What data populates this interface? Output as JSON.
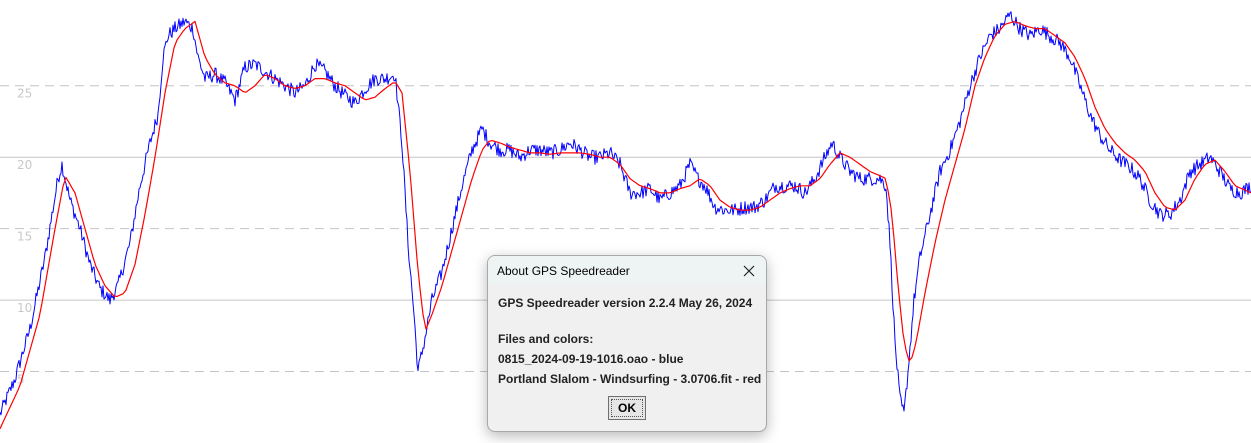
{
  "chart_data": {
    "type": "line",
    "yticks": [
      "25",
      "20",
      "15",
      "10",
      "5"
    ],
    "ylim": [
      0,
      31
    ],
    "grid": "horizontal",
    "series": [
      {
        "color": "#0000ff",
        "points": [
          [
            0,
            2
          ],
          [
            15,
            4.5
          ],
          [
            30,
            8
          ],
          [
            45,
            13
          ],
          [
            58,
            18.5
          ],
          [
            62,
            19.5
          ],
          [
            70,
            17
          ],
          [
            80,
            15
          ],
          [
            90,
            12.5
          ],
          [
            100,
            10.8
          ],
          [
            110,
            10
          ],
          [
            118,
            11
          ],
          [
            130,
            14
          ],
          [
            140,
            18
          ],
          [
            150,
            21
          ],
          [
            158,
            23
          ],
          [
            163,
            27
          ],
          [
            168,
            28.5
          ],
          [
            175,
            29
          ],
          [
            185,
            29.5
          ],
          [
            193,
            29
          ],
          [
            198,
            27
          ],
          [
            205,
            25.5
          ],
          [
            215,
            25.8
          ],
          [
            225,
            25.2
          ],
          [
            235,
            24
          ],
          [
            245,
            26.3
          ],
          [
            255,
            26.5
          ],
          [
            265,
            26
          ],
          [
            275,
            25.5
          ],
          [
            285,
            25
          ],
          [
            295,
            24.5
          ],
          [
            305,
            25
          ],
          [
            315,
            26.5
          ],
          [
            325,
            26
          ],
          [
            335,
            25
          ],
          [
            345,
            24.3
          ],
          [
            355,
            23.8
          ],
          [
            365,
            24.8
          ],
          [
            375,
            25.5
          ],
          [
            385,
            25.5
          ],
          [
            395,
            25.8
          ],
          [
            402,
            21
          ],
          [
            408,
            14
          ],
          [
            414,
            9
          ],
          [
            418,
            5
          ],
          [
            424,
            7
          ],
          [
            432,
            10
          ],
          [
            442,
            12
          ],
          [
            452,
            15
          ],
          [
            462,
            18
          ],
          [
            472,
            20.5
          ],
          [
            482,
            22
          ],
          [
            490,
            21
          ],
          [
            500,
            20.5
          ],
          [
            510,
            20.5
          ],
          [
            520,
            20
          ],
          [
            530,
            20.5
          ],
          [
            540,
            20.5
          ],
          [
            550,
            20.3
          ],
          [
            560,
            20.5
          ],
          [
            570,
            21
          ],
          [
            580,
            20.5
          ],
          [
            590,
            20
          ],
          [
            600,
            20
          ],
          [
            610,
            20.3
          ],
          [
            620,
            19.5
          ],
          [
            630,
            17.5
          ],
          [
            640,
            17.5
          ],
          [
            650,
            17.8
          ],
          [
            660,
            17
          ],
          [
            670,
            17.5
          ],
          [
            680,
            18
          ],
          [
            690,
            19.5
          ],
          [
            698,
            18.5
          ],
          [
            705,
            18
          ],
          [
            715,
            16.5
          ],
          [
            725,
            16.3
          ],
          [
            735,
            16.3
          ],
          [
            745,
            16.5
          ],
          [
            755,
            16.5
          ],
          [
            765,
            17
          ],
          [
            775,
            18
          ],
          [
            785,
            18
          ],
          [
            795,
            18
          ],
          [
            805,
            17.5
          ],
          [
            815,
            18.5
          ],
          [
            825,
            20
          ],
          [
            832,
            21
          ],
          [
            840,
            20
          ],
          [
            850,
            19
          ],
          [
            860,
            18.5
          ],
          [
            870,
            18.5
          ],
          [
            880,
            18.5
          ],
          [
            886,
            18
          ],
          [
            890,
            14
          ],
          [
            895,
            7
          ],
          [
            900,
            3
          ],
          [
            904,
            2
          ],
          [
            908,
            5
          ],
          [
            914,
            10
          ],
          [
            920,
            13
          ],
          [
            930,
            16
          ],
          [
            940,
            19
          ],
          [
            950,
            20.5
          ],
          [
            960,
            22.5
          ],
          [
            970,
            25
          ],
          [
            980,
            27
          ],
          [
            990,
            28.5
          ],
          [
            1000,
            29
          ],
          [
            1010,
            30
          ],
          [
            1020,
            29
          ],
          [
            1030,
            28.5
          ],
          [
            1040,
            29
          ],
          [
            1050,
            28.5
          ],
          [
            1060,
            28
          ],
          [
            1070,
            27
          ],
          [
            1080,
            25
          ],
          [
            1090,
            23
          ],
          [
            1100,
            21.5
          ],
          [
            1110,
            20.5
          ],
          [
            1120,
            19.8
          ],
          [
            1130,
            19.3
          ],
          [
            1140,
            18.5
          ],
          [
            1150,
            17
          ],
          [
            1160,
            16
          ],
          [
            1170,
            16
          ],
          [
            1180,
            17
          ],
          [
            1190,
            19
          ],
          [
            1200,
            19.5
          ],
          [
            1210,
            20
          ],
          [
            1220,
            19
          ],
          [
            1230,
            17.8
          ],
          [
            1240,
            17.5
          ],
          [
            1251,
            18
          ]
        ]
      },
      {
        "color": "#ff0000",
        "points": [
          [
            0,
            1
          ],
          [
            20,
            4
          ],
          [
            40,
            9
          ],
          [
            55,
            15
          ],
          [
            65,
            18.7
          ],
          [
            75,
            17.5
          ],
          [
            85,
            15
          ],
          [
            95,
            12.5
          ],
          [
            105,
            11
          ],
          [
            115,
            10.2
          ],
          [
            125,
            10.5
          ],
          [
            135,
            12.5
          ],
          [
            145,
            16
          ],
          [
            155,
            20
          ],
          [
            165,
            24.5
          ],
          [
            175,
            28
          ],
          [
            185,
            29
          ],
          [
            195,
            29.5
          ],
          [
            205,
            27
          ],
          [
            215,
            25.8
          ],
          [
            225,
            25.2
          ],
          [
            235,
            25
          ],
          [
            245,
            24.5
          ],
          [
            255,
            25
          ],
          [
            265,
            25.8
          ],
          [
            275,
            25.5
          ],
          [
            285,
            25
          ],
          [
            295,
            24.8
          ],
          [
            305,
            25
          ],
          [
            315,
            25.5
          ],
          [
            325,
            25.5
          ],
          [
            335,
            25.2
          ],
          [
            345,
            25
          ],
          [
            355,
            24.5
          ],
          [
            365,
            24
          ],
          [
            375,
            24.2
          ],
          [
            385,
            24.8
          ],
          [
            395,
            25.3
          ],
          [
            402,
            24.5
          ],
          [
            410,
            19
          ],
          [
            418,
            12
          ],
          [
            425,
            7.8
          ],
          [
            432,
            9
          ],
          [
            442,
            11
          ],
          [
            452,
            13.5
          ],
          [
            462,
            16
          ],
          [
            472,
            18.5
          ],
          [
            482,
            20.5
          ],
          [
            490,
            21.2
          ],
          [
            500,
            21
          ],
          [
            510,
            20.7
          ],
          [
            520,
            20.5
          ],
          [
            530,
            20.3
          ],
          [
            540,
            20.3
          ],
          [
            550,
            20.2
          ],
          [
            560,
            20.3
          ],
          [
            570,
            20.3
          ],
          [
            580,
            20.3
          ],
          [
            590,
            20.2
          ],
          [
            600,
            20
          ],
          [
            610,
            20
          ],
          [
            620,
            19.5
          ],
          [
            630,
            18.5
          ],
          [
            640,
            18
          ],
          [
            650,
            17.8
          ],
          [
            660,
            17.5
          ],
          [
            670,
            17.5
          ],
          [
            680,
            17.8
          ],
          [
            690,
            18
          ],
          [
            700,
            18.5
          ],
          [
            710,
            18
          ],
          [
            720,
            17
          ],
          [
            730,
            16.5
          ],
          [
            740,
            16.3
          ],
          [
            750,
            16.3
          ],
          [
            760,
            16.5
          ],
          [
            770,
            17
          ],
          [
            780,
            17.5
          ],
          [
            790,
            17.8
          ],
          [
            800,
            18
          ],
          [
            810,
            18
          ],
          [
            820,
            18.5
          ],
          [
            830,
            19.5
          ],
          [
            840,
            20.3
          ],
          [
            850,
            20
          ],
          [
            860,
            19.5
          ],
          [
            870,
            19
          ],
          [
            880,
            18.7
          ],
          [
            886,
            18.5
          ],
          [
            892,
            16
          ],
          [
            898,
            11
          ],
          [
            904,
            7
          ],
          [
            910,
            5.5
          ],
          [
            916,
            7
          ],
          [
            925,
            10.5
          ],
          [
            935,
            14
          ],
          [
            945,
            17
          ],
          [
            955,
            19.5
          ],
          [
            965,
            22
          ],
          [
            975,
            25
          ],
          [
            985,
            27
          ],
          [
            995,
            28.5
          ],
          [
            1005,
            29.3
          ],
          [
            1015,
            29.5
          ],
          [
            1025,
            29.2
          ],
          [
            1035,
            29
          ],
          [
            1045,
            29
          ],
          [
            1055,
            28.5
          ],
          [
            1065,
            28
          ],
          [
            1075,
            27
          ],
          [
            1085,
            25.5
          ],
          [
            1095,
            23.5
          ],
          [
            1105,
            22
          ],
          [
            1115,
            21
          ],
          [
            1125,
            20.3
          ],
          [
            1135,
            19.8
          ],
          [
            1145,
            19
          ],
          [
            1155,
            17.5
          ],
          [
            1165,
            16.5
          ],
          [
            1175,
            16.3
          ],
          [
            1185,
            17
          ],
          [
            1195,
            18.5
          ],
          [
            1205,
            19.5
          ],
          [
            1215,
            19.8
          ],
          [
            1225,
            19
          ],
          [
            1235,
            18
          ],
          [
            1245,
            17.7
          ],
          [
            1251,
            17.5
          ]
        ]
      }
    ]
  },
  "dialog": {
    "title": "About GPS Speedreader",
    "version_line": "GPS Speedreader version 2.2.4 May 26, 2024",
    "files_heading": "Files and colors:",
    "files": [
      "0815_2024-09-19-1016.oao - blue",
      "Portland Slalom - Windsurfing - 3.0706.fit - red"
    ],
    "ok_label": "OK",
    "close_icon": "close-icon"
  }
}
